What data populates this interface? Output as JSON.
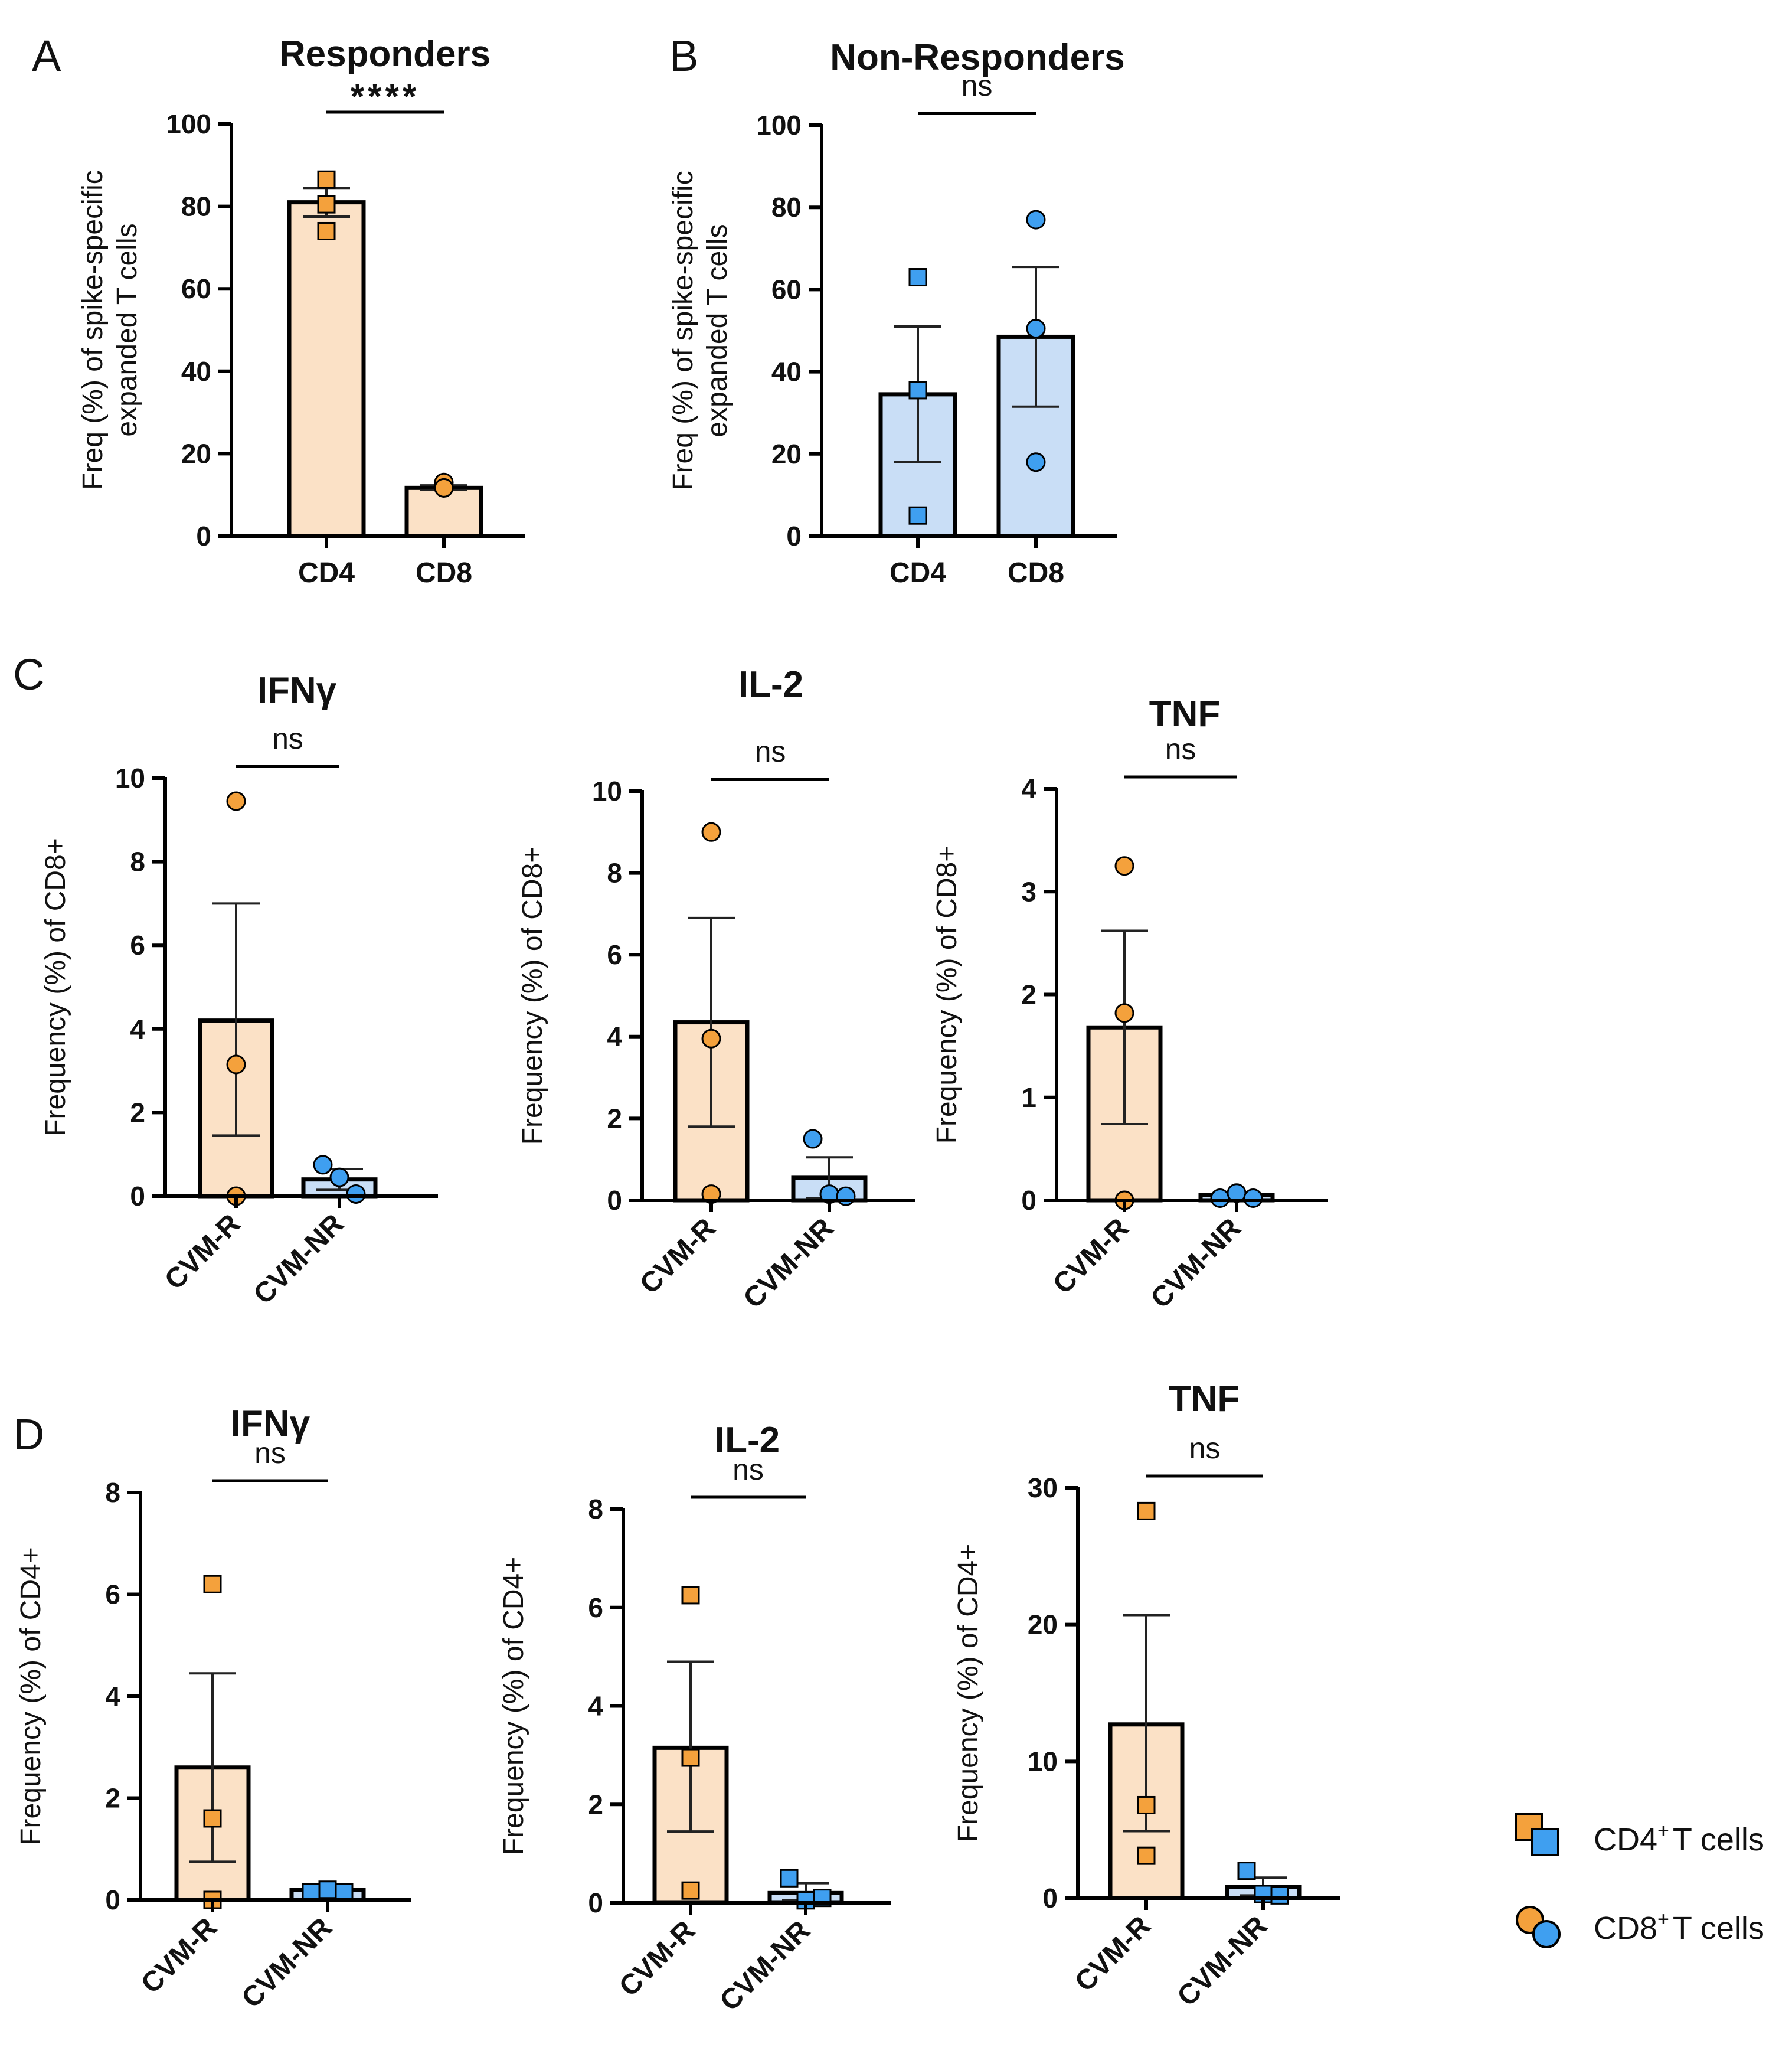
{
  "colors": {
    "orange_fill": "#fbe1c6",
    "orange_dot": "#f4a13c",
    "blue_fill": "#c9def6",
    "blue_dot": "#3f9ff0",
    "stroke": "#000000"
  },
  "legend": {
    "cd4": {
      "label": "CD4",
      "sup": "+",
      "suffix": "T cells",
      "icon": "square-pair-icon"
    },
    "cd8": {
      "label": "CD8",
      "sup": "+",
      "suffix": "T cells",
      "icon": "circle-pair-icon"
    }
  },
  "chart_data": [
    {
      "id": "A",
      "panel_label": "A",
      "type": "bar",
      "title": "Responders",
      "ylabel": [
        "Freq (%) of spike-specific",
        "expanded T cells"
      ],
      "ylim": [
        0,
        100
      ],
      "yticks": [
        "0",
        "20",
        "40",
        "60",
        "80",
        "100"
      ],
      "ytick_values": [
        0,
        20,
        40,
        60,
        80,
        100
      ],
      "categories": [
        "CD4",
        "CD8"
      ],
      "rotate_categories": false,
      "values": [
        81,
        11.7
      ],
      "errors": [
        [
          77.5,
          84.5
        ],
        [
          11.2,
          12.3
        ]
      ],
      "fills": [
        "orange",
        "orange"
      ],
      "points": [
        [
          86.5,
          80.5,
          74
        ],
        [
          11.7,
          13,
          11.7
        ]
      ],
      "markers": [
        "square",
        "circle"
      ],
      "significance": "****"
    },
    {
      "id": "B",
      "panel_label": "B",
      "type": "bar",
      "title": "Non-Responders",
      "ylabel": [
        "Freq (%) of spike-specific",
        "expanded T cells"
      ],
      "ylim": [
        0,
        100
      ],
      "yticks": [
        "0",
        "20",
        "40",
        "60",
        "80",
        "100"
      ],
      "ytick_values": [
        0,
        20,
        40,
        60,
        80,
        100
      ],
      "categories": [
        "CD4",
        "CD8"
      ],
      "rotate_categories": false,
      "values": [
        34.5,
        48.5
      ],
      "errors": [
        [
          18,
          51
        ],
        [
          31.5,
          65.5
        ]
      ],
      "fills": [
        "blue",
        "blue"
      ],
      "points": [
        [
          63,
          35.5,
          5
        ],
        [
          77,
          50.5,
          18
        ]
      ],
      "markers": [
        "square",
        "circle"
      ],
      "significance": "ns"
    },
    {
      "id": "C1",
      "panel_label": "C",
      "type": "bar",
      "title": "IFNγ",
      "ylabel": [
        "Frequency (%) of CD8+"
      ],
      "ylim": [
        0,
        10
      ],
      "yticks": [
        "0",
        "2",
        "4",
        "6",
        "8",
        "10"
      ],
      "ytick_values": [
        0,
        2,
        4,
        6,
        8,
        10
      ],
      "categories": [
        "CVM-R",
        "CVM-NR"
      ],
      "rotate_categories": true,
      "values": [
        4.2,
        0.4
      ],
      "errors": [
        [
          1.45,
          7.0
        ],
        [
          0.15,
          0.65
        ]
      ],
      "fills": [
        "orange",
        "blue"
      ],
      "points": [
        [
          9.45,
          3.15,
          0.0
        ],
        [
          0.75,
          0.45,
          0.05
        ]
      ],
      "markers": [
        "circle",
        "circle"
      ],
      "significance": "ns"
    },
    {
      "id": "C2",
      "panel_label": "",
      "type": "bar",
      "title": "IL-2",
      "ylabel": [
        "Frequency (%) of CD8+"
      ],
      "ylim": [
        0,
        10
      ],
      "yticks": [
        "0",
        "2",
        "4",
        "6",
        "8",
        "10"
      ],
      "ytick_values": [
        0,
        2,
        4,
        6,
        8,
        10
      ],
      "categories": [
        "CVM-R",
        "CVM-NR"
      ],
      "rotate_categories": true,
      "values": [
        4.35,
        0.55
      ],
      "errors": [
        [
          1.8,
          6.9
        ],
        [
          0.05,
          1.05
        ]
      ],
      "fills": [
        "orange",
        "blue"
      ],
      "points": [
        [
          9.0,
          3.95,
          0.15
        ],
        [
          1.5,
          0.15,
          0.1
        ]
      ],
      "markers": [
        "circle",
        "circle"
      ],
      "significance": "ns"
    },
    {
      "id": "C3",
      "panel_label": "",
      "type": "bar",
      "title": "TNF",
      "ylabel": [
        "Frequency (%) of CD8+"
      ],
      "ylim": [
        0,
        4
      ],
      "yticks": [
        "0",
        "1",
        "2",
        "3",
        "4"
      ],
      "ytick_values": [
        0,
        1,
        2,
        3,
        4
      ],
      "categories": [
        "CVM-R",
        "CVM-NR"
      ],
      "rotate_categories": true,
      "values": [
        1.68,
        0.05
      ],
      "errors": [
        [
          0.74,
          2.62
        ],
        [
          0.03,
          0.07
        ]
      ],
      "fills": [
        "orange",
        "blue"
      ],
      "points": [
        [
          3.25,
          1.82,
          0.0
        ],
        [
          0.02,
          0.07,
          0.02
        ]
      ],
      "markers": [
        "circle",
        "circle"
      ],
      "significance": "ns"
    },
    {
      "id": "D1",
      "panel_label": "D",
      "type": "bar",
      "title": "IFNγ",
      "ylabel": [
        "Frequency (%) of CD4+"
      ],
      "ylim": [
        0,
        8
      ],
      "yticks": [
        "0",
        "2",
        "4",
        "6",
        "8"
      ],
      "ytick_values": [
        0,
        2,
        4,
        6,
        8
      ],
      "categories": [
        "CVM-R",
        "CVM-NR"
      ],
      "rotate_categories": true,
      "values": [
        2.6,
        0.2
      ],
      "errors": [
        [
          0.75,
          4.45
        ],
        [
          0.15,
          0.25
        ]
      ],
      "fills": [
        "orange",
        "blue"
      ],
      "points": [
        [
          6.2,
          1.6,
          0.0
        ],
        [
          0.15,
          0.2,
          0.15
        ]
      ],
      "markers": [
        "square",
        "square"
      ],
      "significance": "ns"
    },
    {
      "id": "D2",
      "panel_label": "",
      "type": "bar",
      "title": "IL-2",
      "ylabel": [
        "Frequency (%) of CD4+"
      ],
      "ylim": [
        0,
        8
      ],
      "yticks": [
        "0",
        "2",
        "4",
        "6",
        "8"
      ],
      "ytick_values": [
        0,
        2,
        4,
        6,
        8
      ],
      "categories": [
        "CVM-R",
        "CVM-NR"
      ],
      "rotate_categories": true,
      "values": [
        3.15,
        0.2
      ],
      "errors": [
        [
          1.45,
          4.9
        ],
        [
          0.05,
          0.4
        ]
      ],
      "fills": [
        "orange",
        "blue"
      ],
      "points": [
        [
          6.25,
          2.95,
          0.25
        ],
        [
          0.5,
          0.05,
          0.1
        ]
      ],
      "markers": [
        "square",
        "square"
      ],
      "significance": "ns"
    },
    {
      "id": "D3",
      "panel_label": "",
      "type": "bar",
      "title": "TNF",
      "ylabel": [
        "Frequency (%) of CD4+"
      ],
      "ylim": [
        0,
        30
      ],
      "yticks": [
        "0",
        "10",
        "20",
        "30"
      ],
      "ytick_values": [
        0,
        10,
        20,
        30
      ],
      "categories": [
        "CVM-R",
        "CVM-NR"
      ],
      "rotate_categories": true,
      "values": [
        12.7,
        0.8
      ],
      "errors": [
        [
          4.9,
          20.7
        ],
        [
          0.2,
          1.5
        ]
      ],
      "fills": [
        "orange",
        "blue"
      ],
      "points": [
        [
          28.3,
          6.8,
          3.1
        ],
        [
          2.0,
          0.3,
          0.2
        ]
      ],
      "markers": [
        "square",
        "square"
      ],
      "significance": "ns"
    }
  ]
}
